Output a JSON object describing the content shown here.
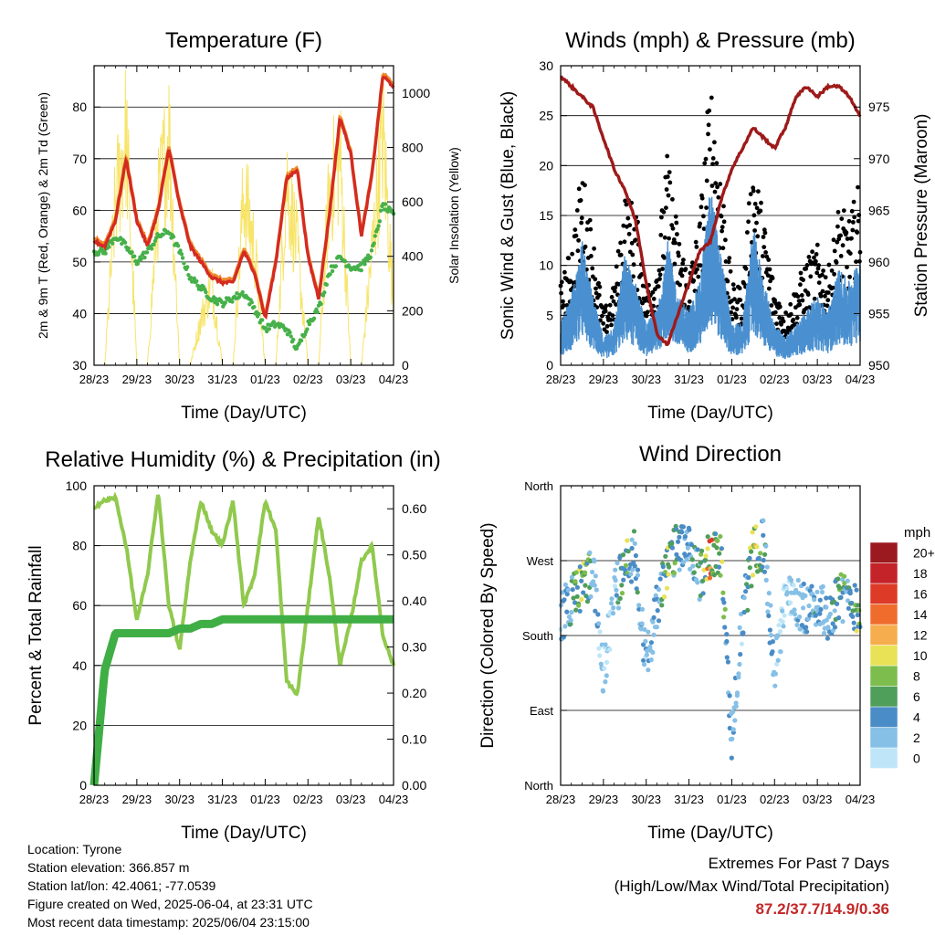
{
  "x_ticks": [
    "28/23",
    "29/23",
    "30/23",
    "31/23",
    "01/23",
    "02/23",
    "03/23",
    "04/23"
  ],
  "panels": {
    "temperature": {
      "title": "Temperature (F)",
      "xlabel": "Time (Day/UTC)",
      "ylabel_left": "2m & 9m T (Red, Orange) & 2m Td (Green)",
      "ylabel_right": "Solar Insolation (Yellow)",
      "left_ticks": [
        "30",
        "40",
        "50",
        "60",
        "70",
        "80"
      ],
      "right_ticks": [
        "0",
        "200",
        "400",
        "600",
        "800",
        "1000"
      ]
    },
    "winds": {
      "title": "Winds (mph) & Pressure (mb)",
      "xlabel": "Time (Day/UTC)",
      "ylabel_left": "Sonic Wind & Gust (Blue, Black)",
      "ylabel_right": "Station Pressure (Maroon)",
      "left_ticks": [
        "0",
        "5",
        "10",
        "15",
        "20",
        "25",
        "30"
      ],
      "right_ticks": [
        "950",
        "955",
        "960",
        "965",
        "970",
        "975"
      ]
    },
    "humidity": {
      "title": "Relative Humidity (%) & Precipitation (in)",
      "xlabel": "Time (Day/UTC)",
      "ylabel_left": "Percent & Total Rainfall",
      "left_ticks": [
        "0",
        "20",
        "40",
        "60",
        "80",
        "100"
      ],
      "right_ticks": [
        "0.00",
        "0.10",
        "0.20",
        "0.30",
        "0.40",
        "0.50",
        "0.60"
      ]
    },
    "direction": {
      "title": "Wind Direction",
      "xlabel": "Time (Day/UTC)",
      "ylabel_left": "Direction (Colored By Speed)",
      "left_ticks": [
        "North",
        "East",
        "South",
        "West",
        "North"
      ],
      "colorbar": {
        "title": "mph",
        "labels": [
          "0",
          "2",
          "4",
          "6",
          "8",
          "10",
          "12",
          "14",
          "16",
          "18",
          "20+"
        ],
        "colors": [
          "#bfe6f8",
          "#86c0e6",
          "#4a8cc6",
          "#4f9e5a",
          "#7dbd4e",
          "#e9e257",
          "#f6ad4e",
          "#ef6c2d",
          "#dd3a28",
          "#c4232a",
          "#9b1a1f"
        ]
      }
    }
  },
  "colors": {
    "temp_2m": "#d42b21",
    "temp_9m": "#f0892b",
    "dewpoint": "#46b04a",
    "solar": "#f7e46a",
    "wind": "#4a90d0",
    "gust": "#000000",
    "pressure": "#9e1a1a",
    "rh": "#90c94d",
    "rain": "#3fae45",
    "extremes": "#c22727"
  },
  "chart_data": [
    {
      "type": "line",
      "title": "Temperature (F)",
      "xlabel": "Time (Day/UTC)",
      "ylabel": "2m & 9m T (Red, Orange) & 2m Td (Green)",
      "ylabel_right": "Solar Insolation (Yellow)",
      "x_range": [
        "28/23",
        "04/23"
      ],
      "ylim": [
        30,
        88
      ],
      "ylim_right": [
        0,
        1100
      ],
      "x": [
        0,
        0.25,
        0.5,
        0.75,
        1.0,
        1.25,
        1.5,
        1.75,
        2.0,
        2.25,
        2.5,
        2.75,
        3.0,
        3.25,
        3.5,
        3.75,
        4.0,
        4.25,
        4.5,
        4.75,
        5.0,
        5.25,
        5.5,
        5.75,
        6.0,
        6.25,
        6.5,
        6.75,
        7.0
      ],
      "series": [
        {
          "name": "2m T",
          "values": [
            54,
            53,
            58,
            70,
            58,
            53,
            60,
            72,
            61,
            53,
            50,
            47,
            46,
            46,
            52,
            48,
            39,
            50,
            66,
            68,
            51,
            43,
            59,
            78,
            71,
            55,
            67,
            86,
            84
          ]
        },
        {
          "name": "2m Td",
          "values": [
            52,
            52,
            55,
            53,
            50,
            52,
            55,
            56,
            52,
            47,
            45,
            43,
            42,
            43,
            44,
            41,
            37,
            38,
            37,
            33,
            38,
            41,
            48,
            51,
            49,
            49,
            52,
            61,
            59
          ]
        },
        {
          "name": "Solar Insolation",
          "values": [
            0,
            0,
            700,
            1000,
            0,
            0,
            700,
            1000,
            0,
            0,
            200,
            350,
            0,
            0,
            750,
            500,
            0,
            0,
            800,
            500,
            0,
            0,
            750,
            900,
            0,
            0,
            500,
            1000,
            250
          ]
        }
      ]
    },
    {
      "type": "scatter",
      "title": "Winds (mph) & Pressure (mb)",
      "xlabel": "Time (Day/UTC)",
      "ylabel": "Sonic Wind & Gust (Blue, Black)",
      "ylabel_right": "Station Pressure (Maroon)",
      "x_range": [
        "28/23",
        "04/23"
      ],
      "ylim": [
        0,
        30
      ],
      "ylim_right": [
        950,
        979
      ],
      "x": [
        0,
        0.25,
        0.5,
        0.75,
        1.0,
        1.25,
        1.5,
        1.75,
        2.0,
        2.25,
        2.5,
        2.75,
        3.0,
        3.25,
        3.5,
        3.75,
        4.0,
        4.25,
        4.5,
        4.75,
        5.0,
        5.25,
        5.5,
        5.75,
        6.0,
        6.25,
        6.5,
        6.75,
        7.0
      ],
      "series": [
        {
          "name": "Sonic Wind",
          "values": [
            3,
            5,
            9,
            5,
            2,
            3,
            8,
            6,
            3,
            4,
            9,
            5,
            4,
            6,
            13,
            8,
            3,
            3,
            10,
            6,
            3,
            2,
            3,
            4,
            5,
            4,
            7,
            6,
            8
          ]
        },
        {
          "name": "Gust",
          "values": [
            6,
            9,
            15,
            10,
            4,
            6,
            13,
            12,
            6,
            8,
            16,
            10,
            7,
            11,
            22,
            15,
            6,
            6,
            16,
            11,
            6,
            4,
            6,
            8,
            9,
            7,
            12,
            11,
            14
          ]
        },
        {
          "name": "Station Pressure",
          "values": [
            978,
            977,
            976,
            975,
            972,
            969,
            967,
            964,
            958,
            953,
            952,
            955,
            958,
            961,
            962,
            966,
            969,
            971,
            973,
            972,
            971,
            973,
            976,
            977,
            976,
            977,
            977,
            976,
            974
          ]
        }
      ]
    },
    {
      "type": "line",
      "title": "Relative Humidity (%) & Precipitation (in)",
      "xlabel": "Time (Day/UTC)",
      "ylabel": "Percent & Total Rainfall",
      "x_range": [
        "28/23",
        "04/23"
      ],
      "ylim": [
        0,
        100
      ],
      "ylim_right": [
        0,
        0.65
      ],
      "x": [
        0,
        0.25,
        0.5,
        0.75,
        1.0,
        1.25,
        1.5,
        1.75,
        2.0,
        2.25,
        2.5,
        2.75,
        3.0,
        3.25,
        3.5,
        3.75,
        4.0,
        4.25,
        4.5,
        4.75,
        5.0,
        5.25,
        5.5,
        5.75,
        6.0,
        6.25,
        6.5,
        6.75,
        7.0
      ],
      "series": [
        {
          "name": "Relative Humidity",
          "values": [
            93,
            95,
            96,
            80,
            55,
            70,
            98,
            60,
            45,
            75,
            95,
            85,
            80,
            95,
            60,
            70,
            95,
            85,
            35,
            30,
            60,
            90,
            70,
            40,
            55,
            75,
            80,
            50,
            40
          ]
        },
        {
          "name": "Total Rainfall",
          "values": [
            0.0,
            0.25,
            0.33,
            0.33,
            0.33,
            0.33,
            0.33,
            0.33,
            0.34,
            0.34,
            0.35,
            0.35,
            0.36,
            0.36,
            0.36,
            0.36,
            0.36,
            0.36,
            0.36,
            0.36,
            0.36,
            0.36,
            0.36,
            0.36,
            0.36,
            0.36,
            0.36,
            0.36,
            0.36
          ]
        }
      ]
    },
    {
      "type": "scatter",
      "title": "Wind Direction",
      "xlabel": "Time (Day/UTC)",
      "ylabel": "Direction (Colored By Speed)",
      "x_range": [
        "28/23",
        "04/23"
      ],
      "ylim": [
        0,
        360
      ],
      "x": [
        0,
        0.25,
        0.5,
        0.75,
        1.0,
        1.25,
        1.5,
        1.75,
        2.0,
        2.25,
        2.5,
        2.75,
        3.0,
        3.25,
        3.5,
        3.75,
        4.0,
        4.25,
        4.5,
        4.75,
        5.0,
        5.25,
        5.5,
        5.75,
        6.0,
        6.25,
        6.5,
        6.75,
        7.0
      ],
      "series": [
        {
          "name": "Direction (deg)",
          "values": [
            200,
            225,
            240,
            260,
            130,
            230,
            260,
            280,
            140,
            220,
            260,
            290,
            280,
            250,
            280,
            270,
            60,
            200,
            280,
            290,
            130,
            230,
            220,
            210,
            220,
            200,
            230,
            220,
            210
          ]
        },
        {
          "name": "Speed (mph)",
          "values": [
            3,
            5,
            9,
            5,
            2,
            3,
            8,
            6,
            3,
            4,
            9,
            5,
            4,
            6,
            13,
            8,
            3,
            3,
            10,
            6,
            3,
            2,
            3,
            4,
            5,
            4,
            7,
            6,
            8
          ]
        }
      ]
    }
  ],
  "info": {
    "location": "Location: Tyrone",
    "elevation": "Station elevation: 366.857 m",
    "latlon": "Station lat/lon: 42.4061; -77.0539",
    "created": "Figure created on Wed, 2025-06-04, at 23:31 UTC",
    "recent": "Most recent data timestamp: 2025/06/04 23:15:00"
  },
  "extremes": {
    "line1": "Extremes For Past 7 Days",
    "line2": "(High/Low/Max Wind/Total Precipitation)",
    "values": "87.2/37.7/14.9/0.36"
  }
}
